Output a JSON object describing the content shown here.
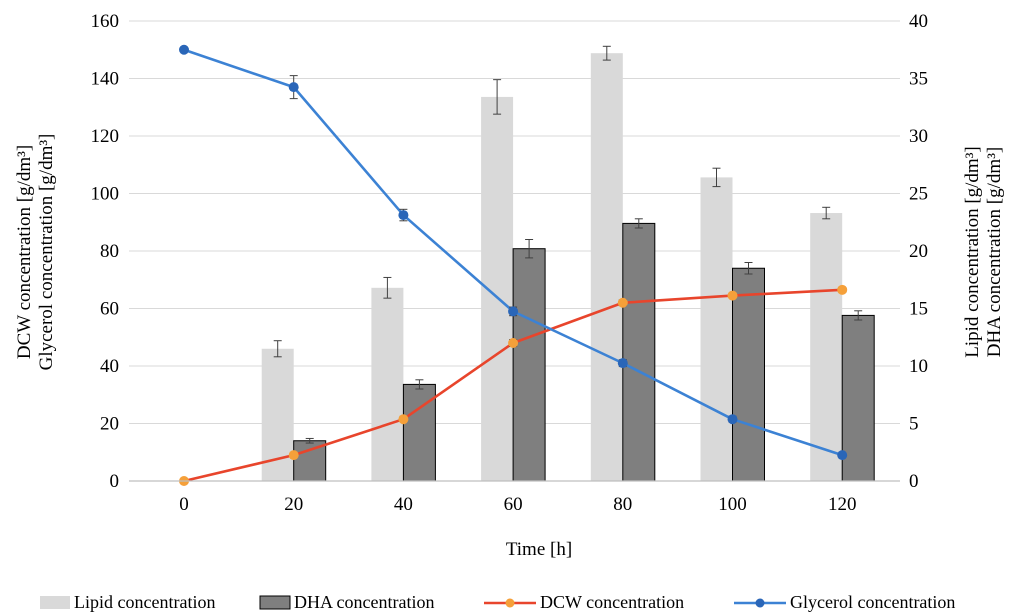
{
  "chart_data": {
    "type": "bar",
    "x": [
      0,
      20,
      40,
      60,
      80,
      100,
      120
    ],
    "xlabel": "Time [h]",
    "ylabel_left": [
      "DCW concentration [g/dm³]",
      "Glycerol concentration [g/dm³]"
    ],
    "ylabel_right": [
      "Lipid concentration [g/dm³]",
      "DHA concentration [g/dm³]"
    ],
    "ylim_left": [
      0,
      160
    ],
    "ylim_right": [
      0,
      40
    ],
    "yticks_left": [
      0,
      20,
      40,
      60,
      80,
      100,
      120,
      140,
      160
    ],
    "yticks_right": [
      0,
      5,
      10,
      15,
      20,
      25,
      30,
      35,
      40
    ],
    "grid": true,
    "legend_position": "bottom",
    "series": [
      {
        "name": "Lipid concentration",
        "kind": "bar",
        "axis": "right",
        "color": "#d9d9d9",
        "values": [
          null,
          11.5,
          16.8,
          33.4,
          37.2,
          26.4,
          23.3
        ],
        "errors": [
          null,
          0.7,
          0.9,
          1.5,
          0.6,
          0.8,
          0.5
        ]
      },
      {
        "name": "DHA concentration",
        "kind": "bar",
        "axis": "right",
        "color": "#7f7f7f",
        "values": [
          null,
          3.5,
          8.4,
          20.2,
          22.4,
          18.5,
          14.4
        ],
        "errors": [
          null,
          0.2,
          0.4,
          0.8,
          0.4,
          0.5,
          0.4
        ]
      },
      {
        "name": "DCW concentration",
        "kind": "line",
        "axis": "left",
        "color": "#e8452c",
        "marker_color": "#f5a03a",
        "values": [
          0,
          9,
          21.5,
          48,
          62,
          64.5,
          66.5
        ],
        "errors": [
          0,
          0.5,
          0.8,
          1.2,
          1.0,
          0.8,
          0.8
        ]
      },
      {
        "name": "Glycerol concentration",
        "kind": "line",
        "axis": "left",
        "color": "#3c82d4",
        "marker_color": "#2a66b8",
        "values": [
          150,
          137,
          92.5,
          59,
          41,
          21.5,
          9
        ],
        "errors": [
          0,
          4,
          2,
          1.5,
          1.2,
          1,
          0.5
        ]
      }
    ]
  }
}
